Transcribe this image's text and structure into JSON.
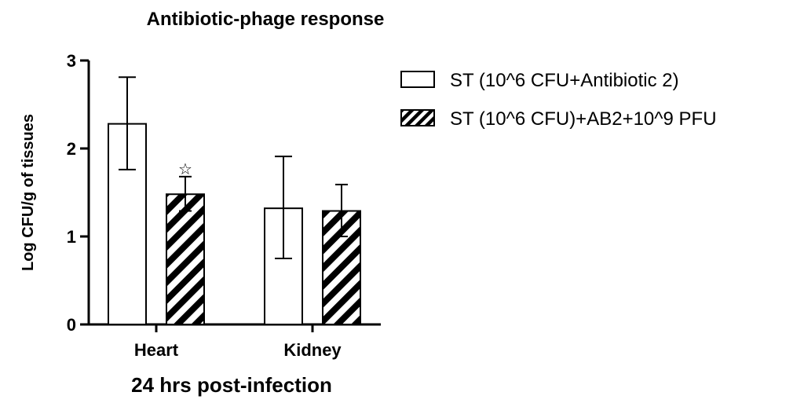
{
  "chart_data": {
    "type": "bar",
    "title": "Antibiotic-phage response",
    "xlabel": "24 hrs post-infection",
    "ylabel": "Log CFU/g of tissues",
    "categories": [
      "Heart",
      "Kidney"
    ],
    "ylim": [
      0,
      3
    ],
    "yticks": [
      "0",
      "1",
      "2",
      "3"
    ],
    "series": [
      {
        "name": "ST (10^6 CFU+Antibiotic 2)",
        "pattern": "open",
        "values": [
          2.28,
          1.32
        ],
        "error_low": [
          1.76,
          0.75
        ],
        "error_high": [
          2.81,
          1.91
        ]
      },
      {
        "name": "ST (10^6 CFU)+AB2+10^9 PFU",
        "pattern": "diagonal-hatch",
        "values": [
          1.48,
          1.29
        ],
        "error_low": [
          1.29,
          1.0
        ],
        "error_high": [
          1.68,
          1.59
        ]
      }
    ],
    "annotations": [
      {
        "text": "☆",
        "series": 1,
        "category": 0
      }
    ],
    "grid": false,
    "legend_position": "right"
  }
}
